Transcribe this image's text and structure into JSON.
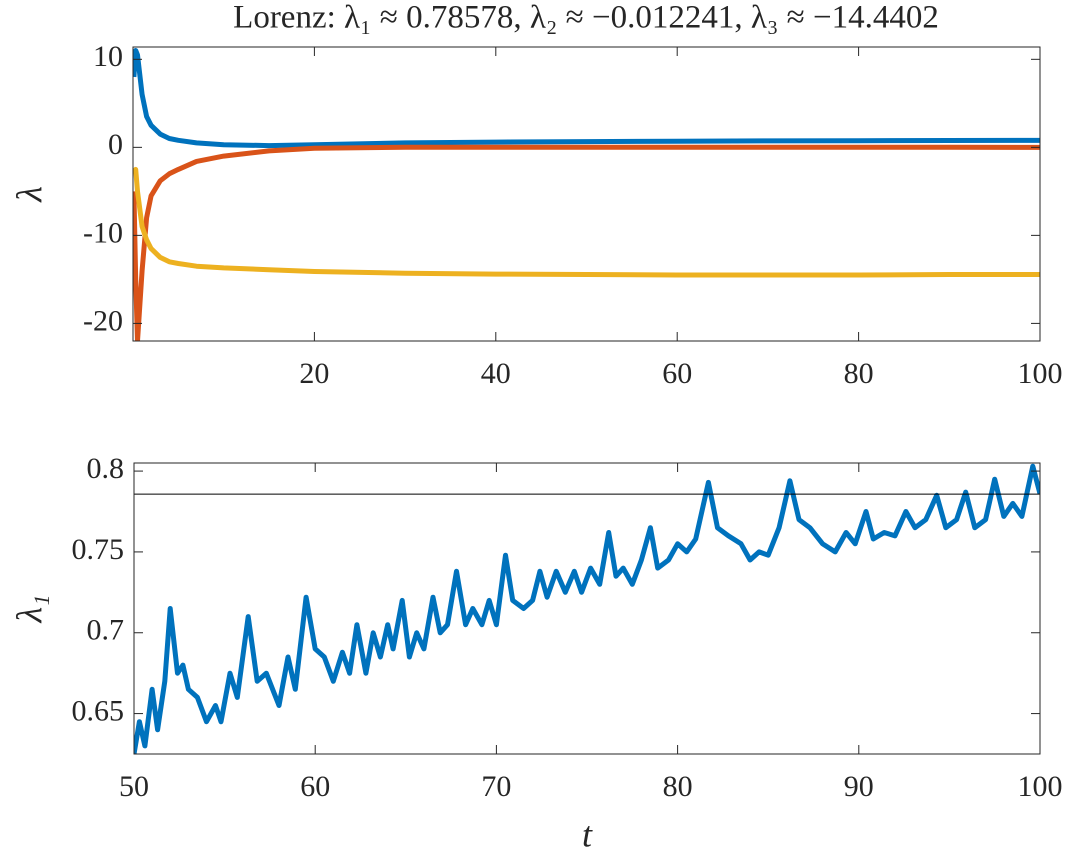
{
  "chart_data": [
    {
      "type": "line",
      "title": "Lorenz: λ₁ ≈ 0.78578, λ₂ ≈ −0.012241, λ₃ ≈ −14.4402",
      "ylabel": "λ",
      "x": [
        0.1,
        0.3,
        0.5,
        1,
        1.5,
        2,
        3,
        4,
        5,
        7,
        10,
        15,
        20,
        30,
        40,
        50,
        60,
        70,
        80,
        90,
        100
      ],
      "series": [
        {
          "color": "#0072bd",
          "values": [
            8,
            11,
            10.5,
            6,
            3.5,
            2.5,
            1.5,
            1.0,
            0.8,
            0.5,
            0.3,
            0.2,
            0.3,
            0.5,
            0.6,
            0.65,
            0.7,
            0.73,
            0.76,
            0.78,
            0.79
          ]
        },
        {
          "color": "#d95319",
          "values": [
            -5,
            -15,
            -22,
            -14,
            -8,
            -5.5,
            -3.8,
            -3,
            -2.5,
            -1.6,
            -1,
            -0.4,
            -0.1,
            0,
            0,
            0,
            0,
            0,
            0,
            0,
            -0.01
          ]
        },
        {
          "color": "#edb120",
          "values": [
            -3,
            -2.5,
            -5,
            -9,
            -10.5,
            -11.5,
            -12.5,
            -13,
            -13.2,
            -13.5,
            -13.7,
            -13.9,
            -14.1,
            -14.3,
            -14.4,
            -14.45,
            -14.5,
            -14.5,
            -14.5,
            -14.45,
            -14.44
          ]
        }
      ],
      "xlim": [
        0,
        100
      ],
      "xticks": [
        20,
        40,
        60,
        80,
        100
      ],
      "ylim": [
        -22,
        11.4
      ],
      "yticks": [
        -20,
        -10,
        0,
        10
      ]
    },
    {
      "type": "line",
      "xlabel": "t",
      "ylabel": "λ₁",
      "x": [
        50.0,
        50.3,
        50.6,
        51.0,
        51.3,
        51.7,
        52.0,
        52.4,
        52.7,
        53.0,
        53.5,
        54.0,
        54.5,
        54.8,
        55.3,
        55.7,
        56.3,
        56.8,
        57.3,
        58.0,
        58.5,
        58.9,
        59.5,
        60.0,
        60.5,
        61.0,
        61.5,
        61.9,
        62.3,
        62.8,
        63.2,
        63.6,
        64.0,
        64.3,
        64.8,
        65.2,
        65.6,
        66.0,
        66.5,
        66.9,
        67.3,
        67.8,
        68.3,
        68.7,
        69.2,
        69.6,
        70.0,
        70.5,
        70.9,
        71.5,
        72.0,
        72.4,
        72.8,
        73.3,
        73.8,
        74.3,
        74.7,
        75.2,
        75.7,
        76.2,
        76.6,
        77.0,
        77.5,
        78.0,
        78.5,
        78.9,
        79.5,
        80.0,
        80.5,
        81.0,
        81.7,
        82.2,
        82.8,
        83.5,
        84.0,
        84.5,
        85.0,
        85.6,
        86.2,
        86.7,
        87.3,
        88.0,
        88.7,
        89.3,
        89.8,
        90.4,
        90.8,
        91.4,
        92.0,
        92.6,
        93.1,
        93.7,
        94.3,
        94.8,
        95.4,
        95.9,
        96.4,
        97.0,
        97.5,
        98.0,
        98.5,
        99.0,
        99.6,
        100.0
      ],
      "series": [
        {
          "color": "#0072bd",
          "values": [
            0.625,
            0.645,
            0.63,
            0.665,
            0.64,
            0.67,
            0.715,
            0.675,
            0.68,
            0.665,
            0.66,
            0.645,
            0.655,
            0.645,
            0.675,
            0.66,
            0.71,
            0.67,
            0.675,
            0.655,
            0.685,
            0.665,
            0.722,
            0.69,
            0.685,
            0.67,
            0.688,
            0.675,
            0.705,
            0.675,
            0.7,
            0.685,
            0.705,
            0.69,
            0.72,
            0.685,
            0.7,
            0.69,
            0.722,
            0.7,
            0.705,
            0.738,
            0.705,
            0.715,
            0.705,
            0.72,
            0.705,
            0.748,
            0.72,
            0.715,
            0.72,
            0.738,
            0.722,
            0.738,
            0.725,
            0.738,
            0.725,
            0.74,
            0.73,
            0.762,
            0.735,
            0.74,
            0.73,
            0.745,
            0.765,
            0.74,
            0.745,
            0.755,
            0.75,
            0.758,
            0.793,
            0.765,
            0.76,
            0.755,
            0.745,
            0.75,
            0.748,
            0.765,
            0.794,
            0.77,
            0.765,
            0.755,
            0.75,
            0.762,
            0.755,
            0.775,
            0.758,
            0.762,
            0.76,
            0.775,
            0.765,
            0.77,
            0.785,
            0.765,
            0.77,
            0.787,
            0.765,
            0.77,
            0.795,
            0.772,
            0.78,
            0.772,
            0.803,
            0.786
          ]
        }
      ],
      "reference_line": 0.78578,
      "xlim": [
        50,
        100
      ],
      "xticks": [
        50,
        60,
        70,
        80,
        90,
        100
      ],
      "ylim": [
        0.625,
        0.805
      ],
      "yticks": [
        0.65,
        0.7,
        0.75,
        0.8
      ]
    }
  ]
}
